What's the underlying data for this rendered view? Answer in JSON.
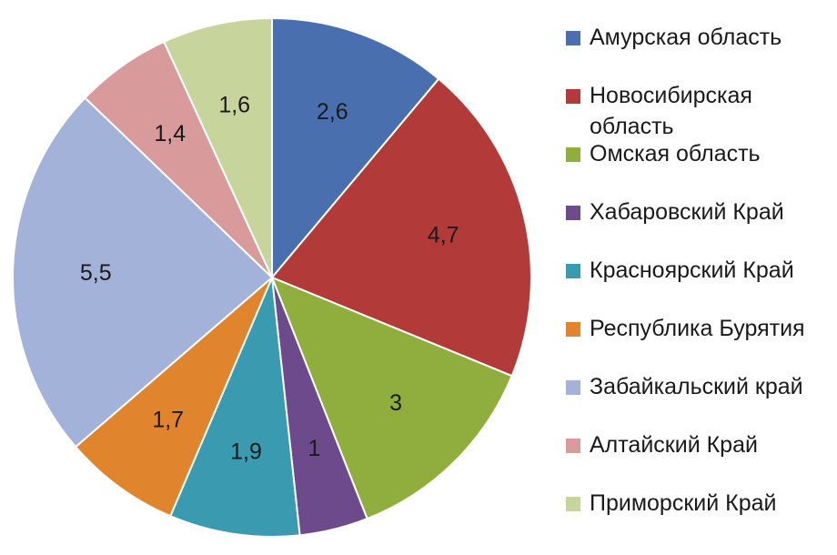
{
  "chart_data": {
    "type": "pie",
    "slices": [
      {
        "label": "Амурская область",
        "value": 2.6,
        "display": "2,6",
        "color": "#4a6fae"
      },
      {
        "label": "Новосибирская область",
        "value": 4.7,
        "display": "4,7",
        "color": "#b23b3a"
      },
      {
        "label": "Омская область",
        "value": 3,
        "display": "3",
        "color": "#8fae3e"
      },
      {
        "label": "Хабаровский Край",
        "value": 1,
        "display": "1",
        "color": "#6c4a8c"
      },
      {
        "label": "Красноярский Край",
        "value": 1.9,
        "display": "1,9",
        "color": "#3a9ab0"
      },
      {
        "label": "Республика Бурятия",
        "value": 1.7,
        "display": "1,7",
        "color": "#e0852e"
      },
      {
        "label": "Забайкальский край",
        "value": 5.5,
        "display": "5,5",
        "color": "#a3b2d8"
      },
      {
        "label": "Алтайский Край",
        "value": 1.4,
        "display": "1,4",
        "color": "#d99a9b"
      },
      {
        "label": "Приморский Край",
        "value": 1.6,
        "display": "1,6",
        "color": "#c7d59d"
      }
    ],
    "legend_position": "right",
    "start_angle": "12 o'clock",
    "direction": "clockwise"
  }
}
